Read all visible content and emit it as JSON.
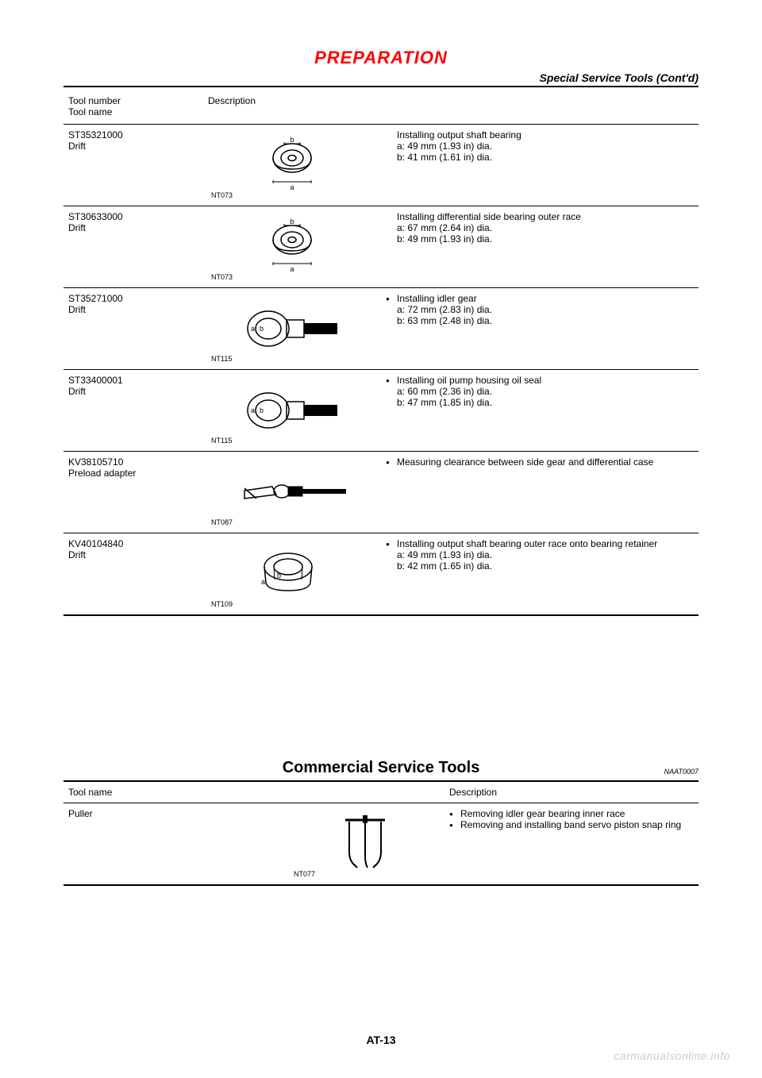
{
  "header": {
    "title": "PREPARATION",
    "subtitle": "Special Service Tools (Cont'd)"
  },
  "table1": {
    "col1_header_l1": "Tool number",
    "col1_header_l2": "Tool name",
    "col2_header": "Description",
    "rows": [
      {
        "num": "ST35321000",
        "name": "Drift",
        "img_code": "NT073",
        "desc": [
          {
            "bullet": false,
            "text": "Installing output shaft bearing"
          },
          {
            "bullet": false,
            "text": "a: 49 mm (1.93 in) dia."
          },
          {
            "bullet": false,
            "text": "b: 41 mm (1.61 in) dia."
          }
        ],
        "shape": "ring"
      },
      {
        "num": "ST30633000",
        "name": "Drift",
        "img_code": "NT073",
        "desc": [
          {
            "bullet": false,
            "text": "Installing differential side bearing outer race"
          },
          {
            "bullet": false,
            "text": "a: 67 mm (2.64 in) dia."
          },
          {
            "bullet": false,
            "text": "b: 49 mm (1.93 in) dia."
          }
        ],
        "shape": "ring"
      },
      {
        "num": "ST35271000",
        "name": "Drift",
        "img_code": "NT115",
        "desc": [
          {
            "bullet": true,
            "text": "Installing idler gear"
          },
          {
            "bullet": false,
            "text": "a: 72 mm (2.83 in) dia."
          },
          {
            "bullet": false,
            "text": "b: 63 mm (2.48 in) dia."
          }
        ],
        "shape": "handle"
      },
      {
        "num": "ST33400001",
        "name": "Drift",
        "img_code": "NT115",
        "desc": [
          {
            "bullet": true,
            "text": "Installing oil pump housing oil seal"
          },
          {
            "bullet": false,
            "text": "a: 60 mm (2.36 in) dia."
          },
          {
            "bullet": false,
            "text": "b: 47 mm (1.85 in) dia."
          }
        ],
        "shape": "handle"
      },
      {
        "num": "KV38105710",
        "name": "Preload adapter",
        "img_code": "NT087",
        "desc": [
          {
            "bullet": true,
            "text": "Measuring clearance between side gear and differential case"
          }
        ],
        "shape": "adapter"
      },
      {
        "num": "KV40104840",
        "name": "Drift",
        "img_code": "NT109",
        "desc": [
          {
            "bullet": true,
            "text": "Installing output shaft bearing outer race onto bearing retainer"
          },
          {
            "bullet": false,
            "text": "a: 49 mm (1.93 in) dia."
          },
          {
            "bullet": false,
            "text": "b: 42 mm (1.65 in) dia."
          }
        ],
        "shape": "cup"
      }
    ]
  },
  "cst": {
    "heading": "Commercial Service Tools",
    "code": "NAAT0007",
    "col1_header": "Tool name",
    "col2_header": "Description",
    "row": {
      "name": "Puller",
      "img_code": "NT077",
      "desc": [
        {
          "bullet": true,
          "text": "Removing idler gear bearing inner race"
        },
        {
          "bullet": true,
          "text": "Removing and installing band servo piston snap ring"
        }
      ]
    }
  },
  "footer": "AT-13",
  "watermark": "carmanualsonline.info"
}
